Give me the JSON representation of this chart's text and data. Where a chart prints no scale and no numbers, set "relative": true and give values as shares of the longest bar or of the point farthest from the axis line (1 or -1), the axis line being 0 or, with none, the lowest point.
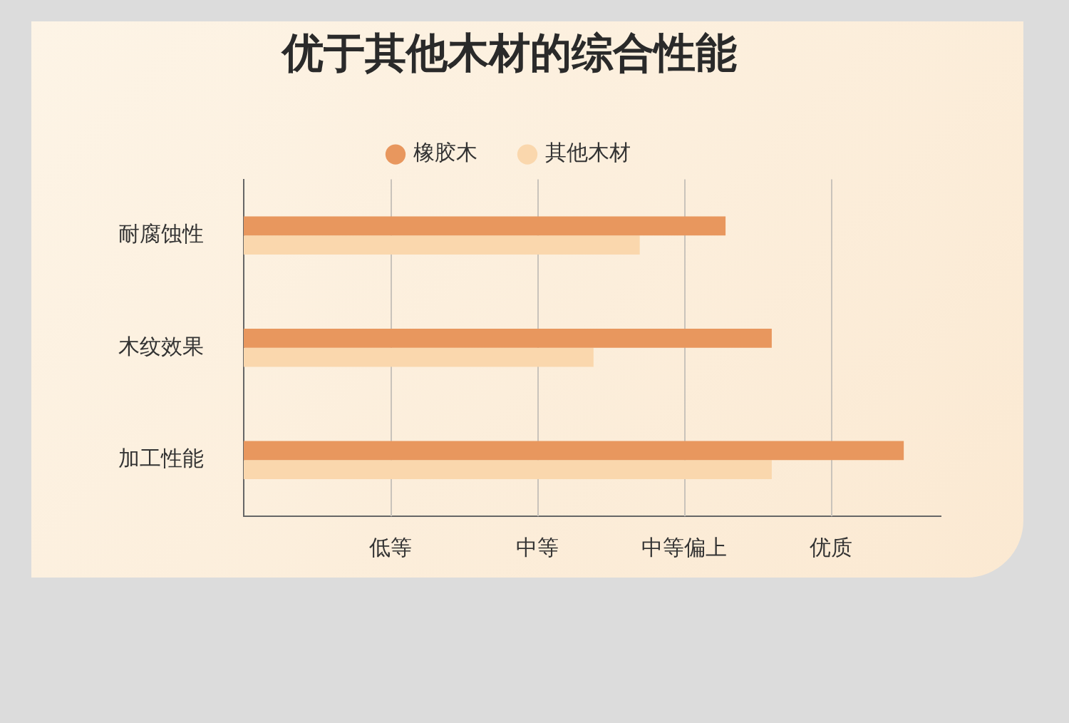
{
  "chart_data": {
    "type": "bar",
    "orientation": "horizontal",
    "title": "优于其他木材的综合性能",
    "categories": [
      "耐腐蚀性",
      "木纹效果",
      "加工性能"
    ],
    "series": [
      {
        "name": "橡胶木",
        "color": "#e8975e",
        "values": [
          0.73,
          0.8,
          1
        ]
      },
      {
        "name": "其他木材",
        "color": "#fad7ad",
        "values": [
          0.6,
          0.53,
          0.8
        ]
      }
    ],
    "relative": true,
    "annotations": [
      "低等",
      "中等",
      "中等偏上",
      "优质"
    ],
    "grid": "x",
    "legend": "top"
  }
}
